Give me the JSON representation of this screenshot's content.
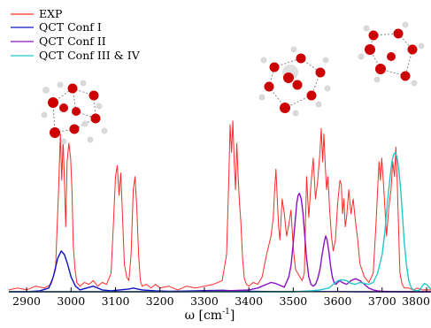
{
  "chart_data": {
    "type": "line",
    "title": "",
    "xlabel": "ω [cm",
    "xlabel_exponent": "-1",
    "xlabel_close": "]",
    "ylabel": "",
    "xlim": [
      2860,
      3810
    ],
    "ylim": [
      0,
      1.0
    ],
    "x_ticks": [
      2900,
      3000,
      3100,
      3200,
      3300,
      3400,
      3500,
      3600,
      3700,
      3800
    ],
    "grid": false,
    "legend_position": "top-left",
    "series": [
      {
        "name": "EXP",
        "color": "#ff2a2a",
        "x": [
          2860,
          2880,
          2900,
          2920,
          2940,
          2955,
          2965,
          2972,
          2976,
          2979,
          2982,
          2985,
          2988,
          2991,
          2995,
          2999,
          3002,
          3005,
          3009,
          3013,
          3020,
          3030,
          3040,
          3050,
          3060,
          3070,
          3080,
          3090,
          3095,
          3100,
          3104,
          3108,
          3112,
          3116,
          3120,
          3125,
          3130,
          3135,
          3140,
          3144,
          3148,
          3152,
          3156,
          3160,
          3170,
          3180,
          3190,
          3200,
          3220,
          3240,
          3260,
          3280,
          3300,
          3320,
          3340,
          3350,
          3355,
          3358,
          3361,
          3364,
          3367,
          3370,
          3373,
          3376,
          3379,
          3382,
          3386,
          3390,
          3395,
          3400,
          3410,
          3420,
          3430,
          3440,
          3450,
          3455,
          3458,
          3461,
          3464,
          3467,
          3470,
          3475,
          3480,
          3485,
          3490,
          3495,
          3500,
          3505,
          3510,
          3515,
          3520,
          3525,
          3530,
          3535,
          3540,
          3545,
          3550,
          3555,
          3560,
          3563,
          3566,
          3569,
          3572,
          3575,
          3578,
          3582,
          3586,
          3590,
          3595,
          3600,
          3605,
          3608,
          3611,
          3614,
          3617,
          3620,
          3625,
          3630,
          3635,
          3640,
          3645,
          3650,
          3660,
          3670,
          3680,
          3686,
          3690,
          3693,
          3696,
          3699,
          3702,
          3705,
          3710,
          3715,
          3720,
          3724,
          3728,
          3731,
          3734,
          3737,
          3740,
          3745,
          3750,
          3760,
          3770,
          3780,
          3790,
          3800,
          3810
        ],
        "y": [
          0.01,
          0.02,
          0.01,
          0.03,
          0.02,
          0.04,
          0.12,
          0.55,
          0.85,
          0.6,
          0.82,
          0.6,
          0.35,
          0.7,
          0.8,
          0.72,
          0.55,
          0.25,
          0.12,
          0.05,
          0.03,
          0.05,
          0.04,
          0.06,
          0.03,
          0.05,
          0.04,
          0.1,
          0.35,
          0.62,
          0.68,
          0.52,
          0.64,
          0.4,
          0.15,
          0.08,
          0.06,
          0.2,
          0.55,
          0.62,
          0.45,
          0.2,
          0.06,
          0.03,
          0.04,
          0.02,
          0.04,
          0.02,
          0.03,
          0.01,
          0.03,
          0.02,
          0.03,
          0.04,
          0.06,
          0.2,
          0.6,
          0.9,
          0.75,
          0.92,
          0.7,
          0.55,
          0.8,
          0.62,
          0.48,
          0.38,
          0.18,
          0.07,
          0.04,
          0.03,
          0.05,
          0.04,
          0.08,
          0.2,
          0.3,
          0.4,
          0.55,
          0.66,
          0.5,
          0.35,
          0.28,
          0.5,
          0.42,
          0.3,
          0.36,
          0.44,
          0.24,
          0.12,
          0.1,
          0.08,
          0.06,
          0.1,
          0.62,
          0.4,
          0.58,
          0.72,
          0.5,
          0.6,
          0.75,
          0.88,
          0.7,
          0.85,
          0.68,
          0.55,
          0.62,
          0.44,
          0.3,
          0.22,
          0.28,
          0.48,
          0.6,
          0.58,
          0.42,
          0.5,
          0.35,
          0.4,
          0.55,
          0.42,
          0.5,
          0.38,
          0.28,
          0.15,
          0.08,
          0.05,
          0.1,
          0.35,
          0.55,
          0.7,
          0.6,
          0.72,
          0.62,
          0.5,
          0.3,
          0.45,
          0.55,
          0.7,
          0.62,
          0.78,
          0.6,
          0.35,
          0.1,
          0.04,
          0.02,
          0.02,
          0.01,
          0.02,
          0.01,
          0.01,
          0.01
        ]
      },
      {
        "name": "QCT Conf I",
        "color": "#1010c8",
        "x": [
          2860,
          2900,
          2930,
          2950,
          2960,
          2970,
          2978,
          2985,
          2992,
          3000,
          3010,
          3020,
          3035,
          3050,
          3070,
          3090,
          3110,
          3130,
          3140,
          3150,
          3160,
          3170,
          3190,
          3220,
          3260,
          3300,
          3340,
          3380,
          3420,
          3460,
          3500,
          3550,
          3600,
          3650,
          3700,
          3750,
          3810
        ],
        "y": [
          0.0,
          0.0,
          0.005,
          0.02,
          0.08,
          0.18,
          0.22,
          0.2,
          0.15,
          0.08,
          0.03,
          0.01,
          0.02,
          0.03,
          0.01,
          0.005,
          0.01,
          0.015,
          0.02,
          0.015,
          0.01,
          0.008,
          0.005,
          0.003,
          0.004,
          0.006,
          0.008,
          0.004,
          0.002,
          0.001,
          0.001,
          0.001,
          0.001,
          0.0,
          0.0,
          0.0,
          0.0
        ]
      },
      {
        "name": "QCT Conf II",
        "color": "#8a10c0",
        "x": [
          2860,
          2950,
          3050,
          3150,
          3250,
          3350,
          3400,
          3420,
          3430,
          3440,
          3450,
          3460,
          3470,
          3480,
          3490,
          3495,
          3500,
          3505,
          3508,
          3511,
          3514,
          3518,
          3522,
          3526,
          3530,
          3535,
          3540,
          3545,
          3550,
          3555,
          3560,
          3565,
          3570,
          3573,
          3576,
          3580,
          3584,
          3588,
          3592,
          3596,
          3600,
          3605,
          3610,
          3620,
          3630,
          3640,
          3650,
          3660,
          3670,
          3680,
          3690,
          3700,
          3720,
          3740,
          3780,
          3810
        ],
        "y": [
          0.0,
          0.0,
          0.0,
          0.0,
          0.0,
          0.005,
          0.01,
          0.02,
          0.03,
          0.04,
          0.05,
          0.045,
          0.035,
          0.025,
          0.08,
          0.14,
          0.26,
          0.4,
          0.48,
          0.52,
          0.53,
          0.5,
          0.42,
          0.3,
          0.18,
          0.08,
          0.04,
          0.03,
          0.04,
          0.07,
          0.12,
          0.2,
          0.27,
          0.3,
          0.28,
          0.22,
          0.14,
          0.08,
          0.05,
          0.04,
          0.05,
          0.06,
          0.05,
          0.04,
          0.06,
          0.07,
          0.06,
          0.04,
          0.02,
          0.01,
          0.005,
          0.003,
          0.001,
          0.0,
          0.0,
          0.0
        ]
      },
      {
        "name": "QCT Conf III & IV",
        "color": "#20c8c8",
        "x": [
          2860,
          3000,
          3200,
          3400,
          3500,
          3540,
          3560,
          3580,
          3590,
          3600,
          3610,
          3620,
          3630,
          3640,
          3650,
          3660,
          3670,
          3680,
          3690,
          3700,
          3706,
          3712,
          3718,
          3722,
          3726,
          3730,
          3734,
          3738,
          3742,
          3746,
          3750,
          3755,
          3760,
          3765,
          3770,
          3778,
          3785,
          3790,
          3795,
          3800,
          3805,
          3810
        ],
        "y": [
          0.0,
          0.0,
          0.0,
          0.0,
          0.0,
          0.005,
          0.01,
          0.02,
          0.04,
          0.06,
          0.065,
          0.06,
          0.045,
          0.04,
          0.05,
          0.045,
          0.04,
          0.05,
          0.1,
          0.2,
          0.32,
          0.48,
          0.62,
          0.7,
          0.74,
          0.75,
          0.72,
          0.65,
          0.54,
          0.4,
          0.26,
          0.14,
          0.06,
          0.025,
          0.01,
          0.005,
          0.01,
          0.03,
          0.045,
          0.04,
          0.025,
          0.015
        ]
      }
    ]
  }
}
